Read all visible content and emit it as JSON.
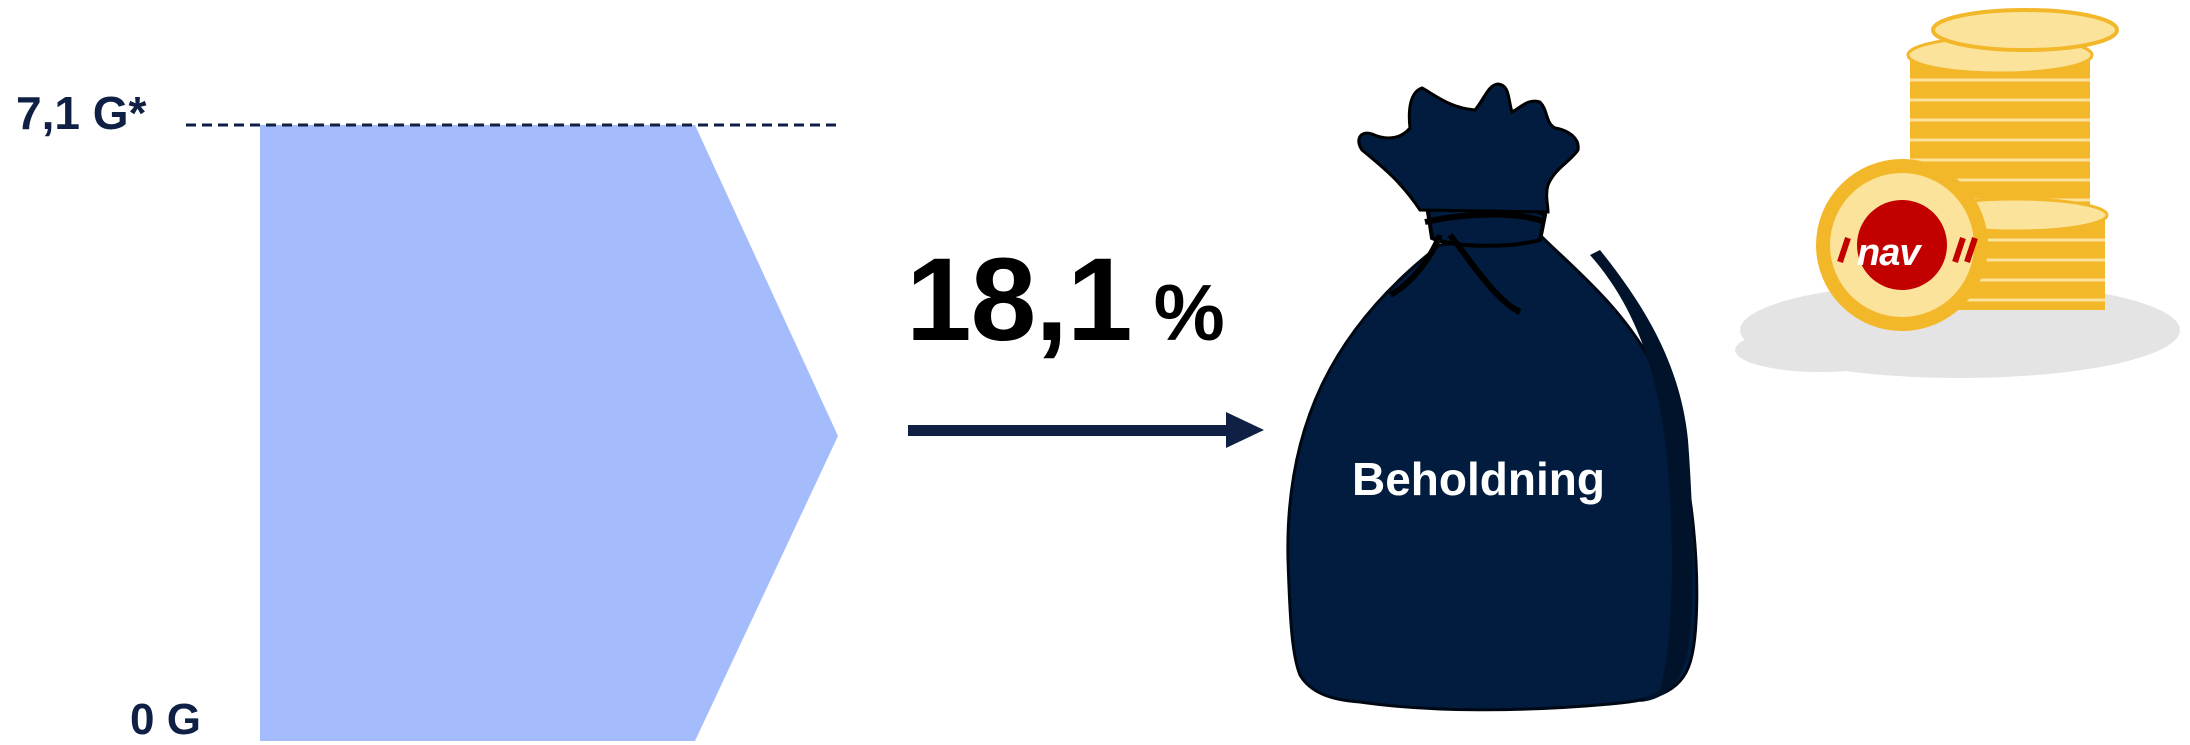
{
  "diagram": {
    "threshold_label": "7,1 G*",
    "base_label": "0 G",
    "rate_value": "18,1",
    "rate_unit": "%",
    "destination_label": "Beholdning",
    "logo_text": "nav"
  },
  "colors": {
    "band": "#a4bcfc",
    "navy": "#0f2044",
    "bag": "#011c3e",
    "coin": "#f3b72a",
    "coin_light": "#fbe39b",
    "logo_red": "#c30000"
  },
  "icons": [
    "money-bag-icon",
    "coin-stack-icon",
    "nav-logo-icon",
    "arrow-right-icon"
  ]
}
